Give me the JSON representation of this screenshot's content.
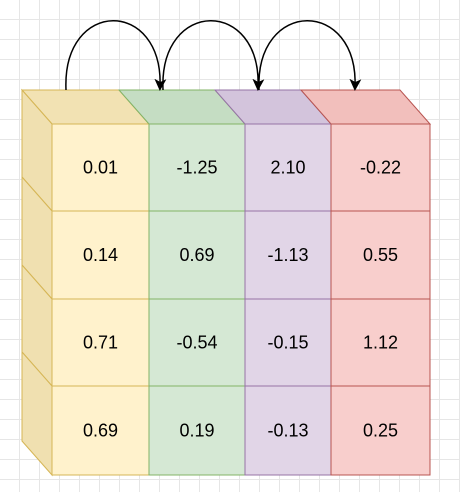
{
  "columns": [
    {
      "name": "col-1",
      "front_color": "#fff2cc",
      "top_color": "#f2e2b3",
      "side_color": "#f0e0b0",
      "stroke": "#d6b656",
      "values": [
        "0.01",
        "0.14",
        "0.71",
        "0.69"
      ]
    },
    {
      "name": "col-2",
      "front_color": "#d5e8d4",
      "top_color": "#c5ddc3",
      "stroke": "#82b366",
      "values": [
        "-1.25",
        "0.69",
        "-0.54",
        "0.19"
      ]
    },
    {
      "name": "col-3",
      "front_color": "#e1d5e7",
      "top_color": "#d3c4dc",
      "stroke": "#9673a6",
      "values": [
        "2.10",
        "-1.13",
        "-0.15",
        "-0.13"
      ]
    },
    {
      "name": "col-4",
      "front_color": "#f8cecc",
      "top_color": "#f2bfbc",
      "stroke": "#b85450",
      "values": [
        "-0.22",
        "0.55",
        "1.12",
        "0.25"
      ]
    }
  ],
  "arrows": [
    {
      "from": "col-1",
      "to": "col-2"
    },
    {
      "from": "col-2",
      "to": "col-3"
    },
    {
      "from": "col-3",
      "to": "col-4"
    }
  ],
  "arrow_color": "#000000"
}
